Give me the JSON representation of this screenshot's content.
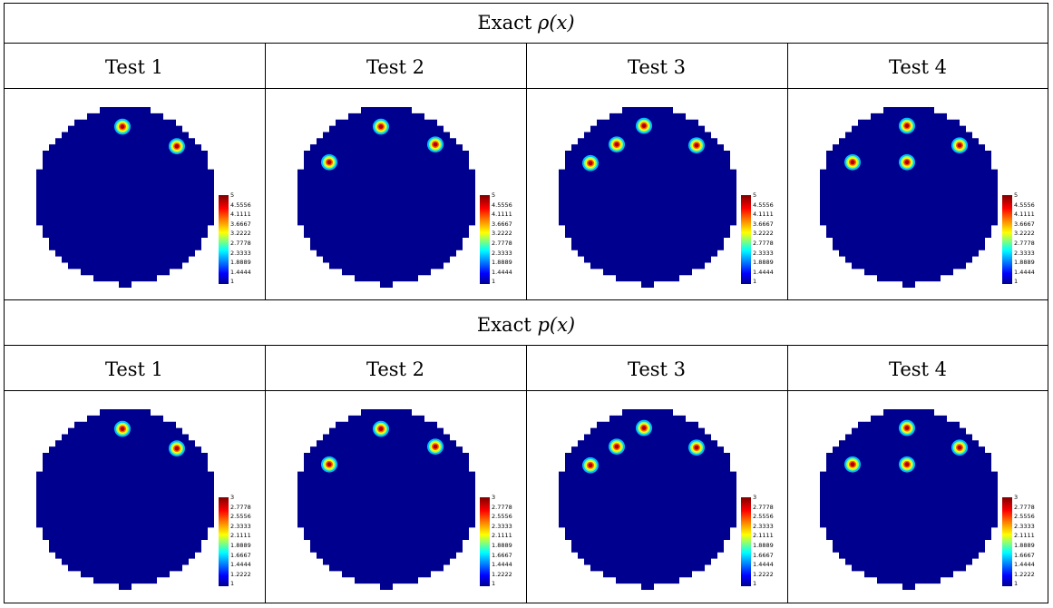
{
  "section_rho": {
    "prefix": "Exact ",
    "symbol": "ρ(x)"
  },
  "section_p": {
    "prefix": "Exact ",
    "symbol": "p(x)"
  },
  "tests": [
    "Test 1",
    "Test 2",
    "Test 3",
    "Test 4"
  ],
  "colorbar_rho": [
    "5",
    "4.5556",
    "4.1111",
    "3.6667",
    "3.2222",
    "2.7778",
    "2.3333",
    "1.8889",
    "1.4444",
    "1"
  ],
  "colorbar_p": [
    "3",
    "2.7778",
    "2.5556",
    "2.3333",
    "2.1111",
    "1.8889",
    "1.6667",
    "1.4444",
    "1.2222",
    "1"
  ],
  "colors": {
    "disk": "#00008f",
    "inclusion_core": "#b00000"
  },
  "chart_data": [
    {
      "type": "heatmap",
      "title": "Exact ρ(x)",
      "panels": [
        "Test 1",
        "Test 2",
        "Test 3",
        "Test 4"
      ],
      "inclusions_per_test": [
        2,
        3,
        4,
        4
      ],
      "color_range": [
        1,
        5
      ]
    },
    {
      "type": "heatmap",
      "title": "Exact p(x)",
      "panels": [
        "Test 1",
        "Test 2",
        "Test 3",
        "Test 4"
      ],
      "inclusions_per_test": [
        2,
        3,
        4,
        4
      ],
      "color_range": [
        1,
        3
      ]
    }
  ]
}
